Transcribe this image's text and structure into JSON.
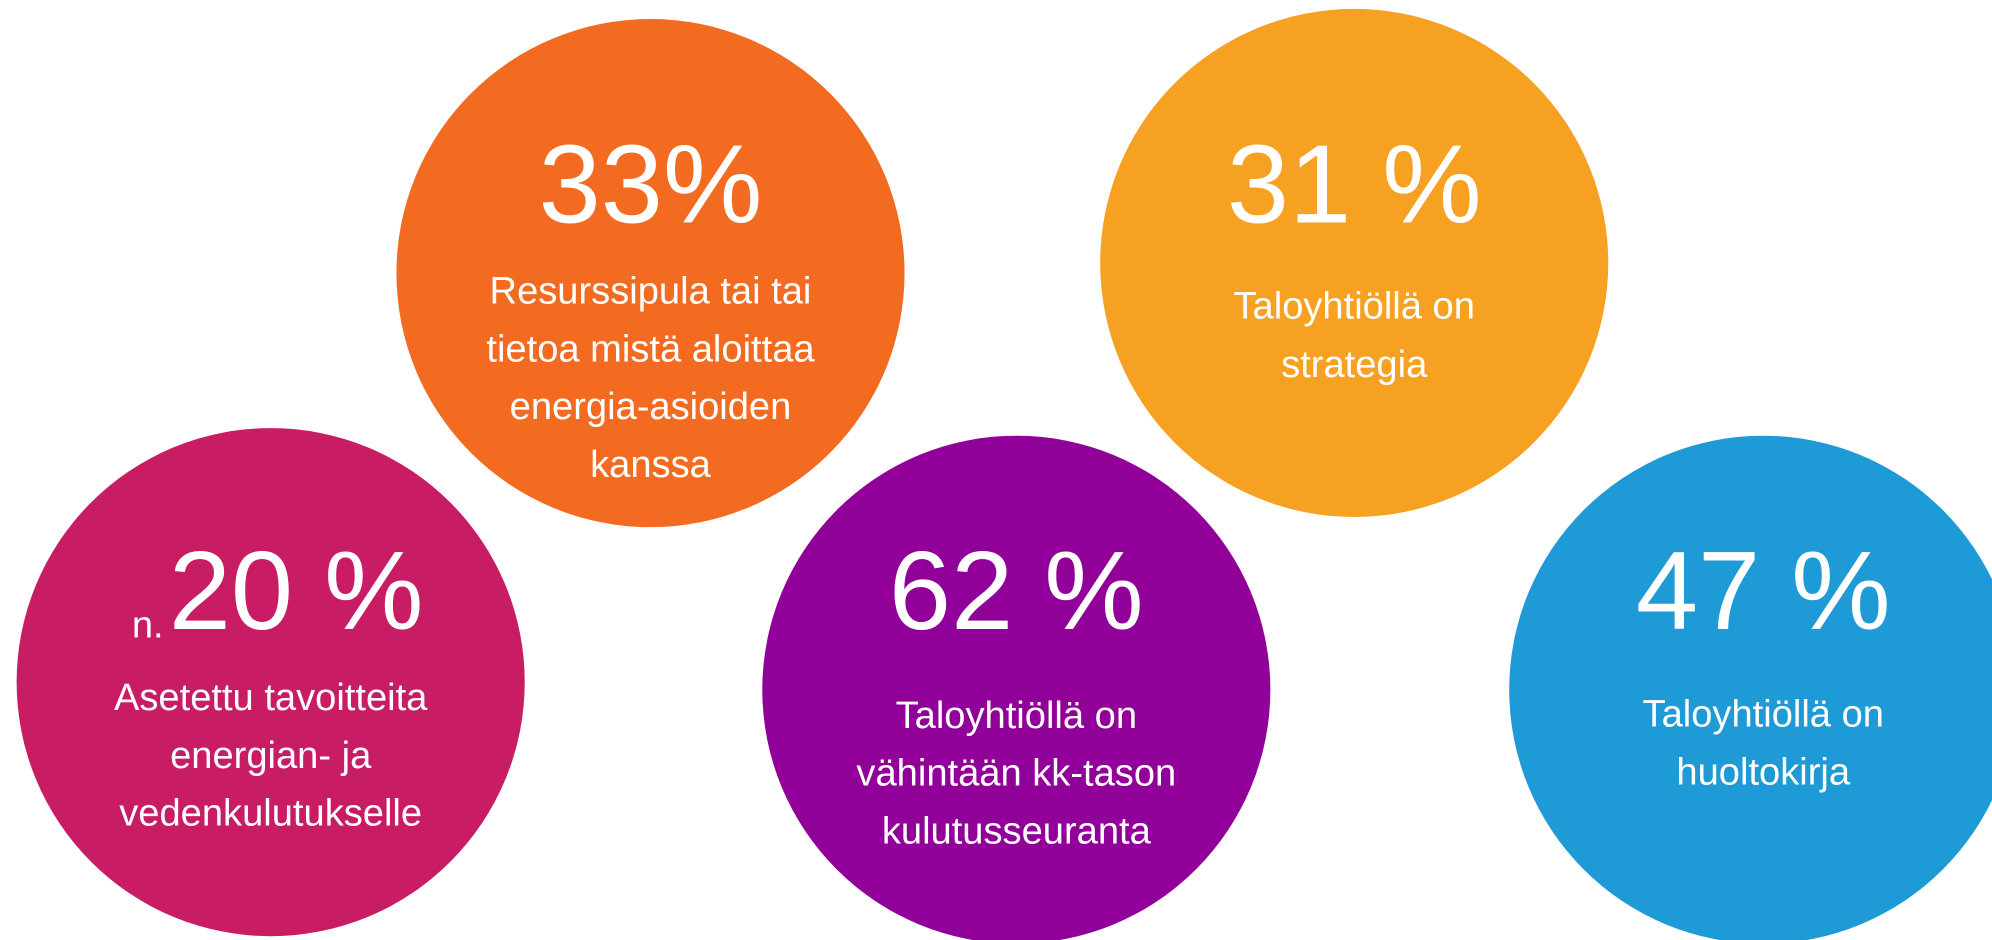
{
  "circles": [
    {
      "value": "33%",
      "lines": [
        "Resurssipula tai tai",
        "tietoa mistä aloittaa",
        "energia-asioiden",
        "kanssa"
      ],
      "color": "#f26b21"
    },
    {
      "value": "31 %",
      "lines": [
        "Taloyhtiöllä on",
        "strategia"
      ],
      "color": "#f7a123"
    },
    {
      "prefix": "n.",
      "value": "20 %",
      "lines": [
        "Asetettu tavoitteita",
        "energian- ja",
        "vedenkulutukselle"
      ],
      "color": "#c81c64"
    },
    {
      "value": "62 %",
      "lines": [
        "Taloyhtiöllä on",
        "vähintään kk-tason",
        "kulutusseuranta"
      ],
      "color": "#92009a"
    },
    {
      "value": "47 %",
      "lines": [
        "Taloyhtiöllä on",
        "huoltokirja"
      ],
      "color": "#1e9ad6"
    }
  ]
}
